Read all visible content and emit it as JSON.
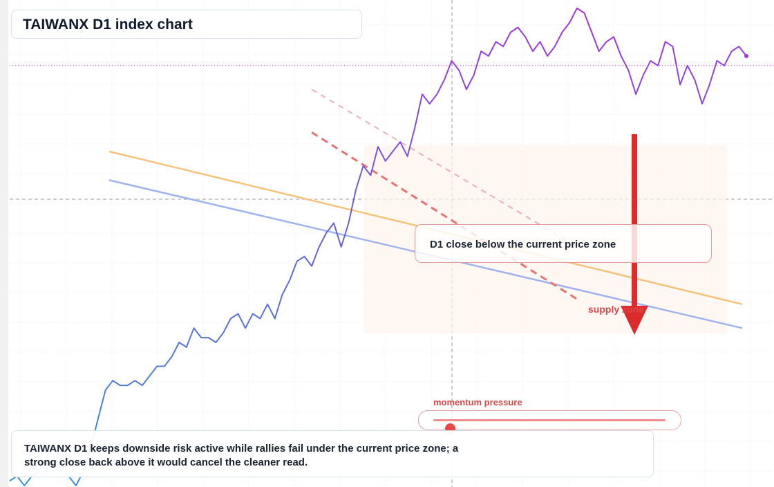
{
  "title": "TAIWANX D1 index chart",
  "callout": "D1 close below the current price zone",
  "zone_label": "supply zone",
  "momentum": {
    "label": "momentum pressure",
    "level": 0.07
  },
  "note": "TAIWANX D1 keeps downside risk active while rallies fail under the current price zone; a strong close back above it would cancel the cleaner read.",
  "colors": {
    "price_low": "#3a8fd9",
    "price_mid": "#6a5fd6",
    "price_high": "#a134e0",
    "orange_line": "#f6c27a",
    "blue_line": "#9fb3ef",
    "dashed_line": "#e57373",
    "arrow": "#dd2a2a",
    "zone_fill": "#fff4ec"
  },
  "chart_data": {
    "type": "line",
    "title": "TAIWANX D1 index chart",
    "xlabel": "",
    "ylabel": "",
    "grid": true,
    "x_range": [
      0,
      100
    ],
    "y_range": [
      0,
      100
    ],
    "price_series": [
      [
        0,
        1
      ],
      [
        1,
        2
      ],
      [
        2,
        0
      ],
      [
        3,
        2
      ],
      [
        4,
        3
      ],
      [
        5,
        6
      ],
      [
        6,
        9
      ],
      [
        7,
        5
      ],
      [
        8,
        2
      ],
      [
        9,
        0
      ],
      [
        10,
        3
      ],
      [
        11,
        8
      ],
      [
        12,
        14
      ],
      [
        13,
        20
      ],
      [
        14,
        22
      ],
      [
        15,
        21
      ],
      [
        16,
        21
      ],
      [
        17,
        22
      ],
      [
        18,
        21
      ],
      [
        19,
        23
      ],
      [
        20,
        25
      ],
      [
        21,
        25
      ],
      [
        22,
        27
      ],
      [
        23,
        30
      ],
      [
        24,
        29
      ],
      [
        25,
        33
      ],
      [
        26,
        31
      ],
      [
        27,
        31
      ],
      [
        28,
        30
      ],
      [
        29,
        32
      ],
      [
        30,
        35
      ],
      [
        31,
        36
      ],
      [
        32,
        33
      ],
      [
        33,
        36
      ],
      [
        34,
        35
      ],
      [
        35,
        38
      ],
      [
        36,
        35
      ],
      [
        37,
        40
      ],
      [
        38,
        43
      ],
      [
        39,
        47
      ],
      [
        40,
        48
      ],
      [
        41,
        46
      ],
      [
        42,
        50
      ],
      [
        43,
        53
      ],
      [
        44,
        55
      ],
      [
        45,
        50
      ],
      [
        46,
        55
      ],
      [
        47,
        62
      ],
      [
        48,
        67
      ],
      [
        49,
        65
      ],
      [
        50,
        71
      ],
      [
        51,
        68
      ],
      [
        52,
        70
      ],
      [
        53,
        72
      ],
      [
        54,
        69
      ],
      [
        55,
        75
      ],
      [
        56,
        82
      ],
      [
        57,
        80
      ],
      [
        58,
        82
      ],
      [
        59,
        85
      ],
      [
        60,
        89
      ],
      [
        61,
        87
      ],
      [
        62,
        83
      ],
      [
        63,
        86
      ],
      [
        64,
        91
      ],
      [
        65,
        90
      ],
      [
        66,
        93
      ],
      [
        67,
        92
      ],
      [
        68,
        95
      ],
      [
        69,
        96
      ],
      [
        70,
        94
      ],
      [
        71,
        91
      ],
      [
        72,
        93
      ],
      [
        73,
        90
      ],
      [
        74,
        92
      ],
      [
        75,
        95
      ],
      [
        76,
        97
      ],
      [
        77,
        100
      ],
      [
        78,
        99
      ],
      [
        79,
        95
      ],
      [
        80,
        91
      ],
      [
        81,
        93
      ],
      [
        82,
        94
      ],
      [
        83,
        90
      ],
      [
        84,
        87
      ],
      [
        85,
        82
      ],
      [
        86,
        86
      ],
      [
        87,
        89
      ],
      [
        88,
        88
      ],
      [
        89,
        93
      ],
      [
        90,
        92
      ],
      [
        91,
        84
      ],
      [
        92,
        88
      ],
      [
        93,
        85
      ],
      [
        94,
        80
      ],
      [
        95,
        84
      ],
      [
        96,
        89
      ],
      [
        97,
        88
      ],
      [
        98,
        91
      ],
      [
        99,
        92
      ],
      [
        100,
        90
      ]
    ],
    "orange_trend": [
      [
        0,
        70
      ],
      [
        100,
        38
      ]
    ],
    "blue_trend": [
      [
        0,
        64
      ],
      [
        100,
        33
      ]
    ],
    "upper_channel": [
      [
        32,
        83
      ],
      [
        74,
        50
      ]
    ],
    "lower_channel": [
      [
        32,
        74
      ],
      [
        74,
        39
      ]
    ],
    "current_price_level": 88,
    "price_zone_mid": 60,
    "arrow_target": 33
  }
}
